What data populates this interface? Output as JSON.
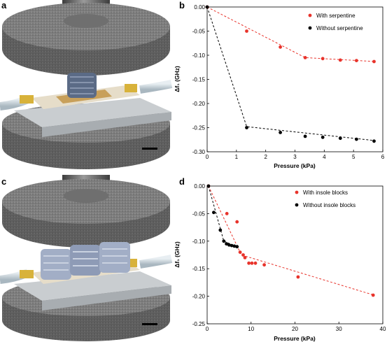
{
  "panels": {
    "a": "a",
    "b": "b",
    "c": "c",
    "d": "d"
  },
  "colors": {
    "red": "#e8332b",
    "black": "#000000"
  },
  "chart_data": [
    {
      "panel": "b",
      "type": "scatter",
      "title": "",
      "xlabel": "Pressure (kPa)",
      "ylabel": "Δf₁ (GHz)",
      "xlim": [
        0,
        6
      ],
      "ylim": [
        -0.3,
        0.0
      ],
      "xticks": [
        "0",
        "1",
        "2",
        "3",
        "4",
        "5",
        "6"
      ],
      "yticks": [
        "0.00",
        "-0.05",
        "-0.10",
        "-0.15",
        "-0.20",
        "-0.25",
        "-0.30"
      ],
      "legend_position": "top-right",
      "series": [
        {
          "name": "With serpentine",
          "color": "#e8332b",
          "points": [
            [
              0,
              0
            ],
            [
              1.35,
              -0.05
            ],
            [
              2.5,
              -0.083
            ],
            [
              3.35,
              -0.105
            ],
            [
              3.95,
              -0.107
            ],
            [
              4.55,
              -0.11
            ],
            [
              5.1,
              -0.111
            ],
            [
              5.7,
              -0.113
            ]
          ],
          "fit": [
            [
              0,
              0
            ],
            [
              3.35,
              -0.105
            ],
            [
              5.75,
              -0.113
            ]
          ]
        },
        {
          "name": "Without serpentine",
          "color": "#000000",
          "points": [
            [
              0,
              0
            ],
            [
              1.35,
              -0.25
            ],
            [
              2.5,
              -0.26
            ],
            [
              3.35,
              -0.268
            ],
            [
              3.95,
              -0.27
            ],
            [
              4.55,
              -0.272
            ],
            [
              5.1,
              -0.274
            ],
            [
              5.7,
              -0.278
            ]
          ],
          "fit": [
            [
              0,
              0
            ],
            [
              1.35,
              -0.248
            ],
            [
              5.75,
              -0.277
            ]
          ]
        }
      ]
    },
    {
      "panel": "d",
      "type": "scatter",
      "title": "",
      "xlabel": "Pressure (kPa)",
      "ylabel": "Δf₁ (GHz)",
      "xlim": [
        0,
        40
      ],
      "ylim": [
        -0.25,
        0.0
      ],
      "xticks": [
        "0",
        "10",
        "20",
        "30",
        "40"
      ],
      "yticks": [
        "0.00",
        "-0.05",
        "-0.10",
        "-0.15",
        "-0.20",
        "-0.25"
      ],
      "legend_position": "top-right",
      "series": [
        {
          "name": "With insole blocks",
          "color": "#e8332b",
          "points": [
            [
              0.3,
              0
            ],
            [
              4.5,
              -0.05
            ],
            [
              6.8,
              -0.065
            ],
            [
              7.5,
              -0.12
            ],
            [
              8.2,
              -0.125
            ],
            [
              8.6,
              -0.13
            ],
            [
              9.5,
              -0.14
            ],
            [
              10.2,
              -0.14
            ],
            [
              11,
              -0.14
            ],
            [
              13,
              -0.143
            ],
            [
              20.7,
              -0.165
            ],
            [
              37.8,
              -0.198
            ]
          ],
          "fit": [
            [
              0.3,
              0
            ],
            [
              7.8,
              -0.125
            ],
            [
              38,
              -0.198
            ]
          ]
        },
        {
          "name": "Without insole blocks",
          "color": "#000000",
          "points": [
            [
              0.3,
              0
            ],
            [
              1.5,
              -0.048
            ],
            [
              3.0,
              -0.08
            ],
            [
              3.8,
              -0.1
            ],
            [
              4.4,
              -0.105
            ],
            [
              5.0,
              -0.107
            ],
            [
              5.6,
              -0.108
            ],
            [
              6.2,
              -0.109
            ],
            [
              6.8,
              -0.11
            ]
          ],
          "fit": [
            [
              0.3,
              0
            ],
            [
              3.8,
              -0.1
            ],
            [
              6.8,
              -0.11
            ]
          ]
        }
      ]
    }
  ]
}
